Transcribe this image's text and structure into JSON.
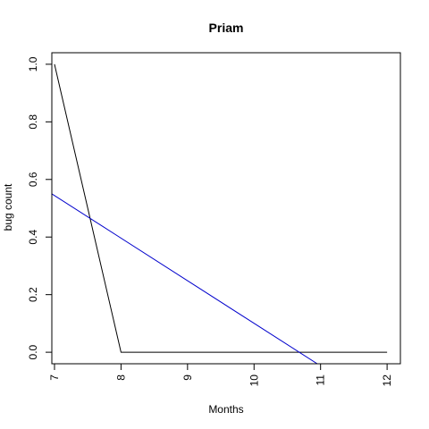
{
  "chart_data": {
    "type": "line",
    "title": "Priam",
    "xlabel": "Months",
    "ylabel": "bug count",
    "xlim": [
      6.96,
      12.2
    ],
    "ylim": [
      -0.04,
      1.04
    ],
    "x_ticks": [
      7,
      8,
      9,
      10,
      11,
      12
    ],
    "y_ticks": [
      0.0,
      0.2,
      0.4,
      0.6,
      0.8,
      1.0
    ],
    "x_tick_labels": [
      "7",
      "8",
      "9",
      "10",
      "11",
      "12"
    ],
    "y_tick_labels": [
      "0.0",
      "0.2",
      "0.4",
      "0.6",
      "0.8",
      "1.0"
    ],
    "grid": false,
    "series": [
      {
        "color": "#000000",
        "x": [
          7,
          8,
          9,
          10,
          11,
          12
        ],
        "y": [
          1.0,
          0.0,
          0.0,
          0.0,
          0.0,
          0.0
        ]
      },
      {
        "color": "#0000cc",
        "type": "regression",
        "x": [
          6.96,
          10.95
        ],
        "y": [
          0.55,
          -0.04
        ]
      }
    ]
  }
}
